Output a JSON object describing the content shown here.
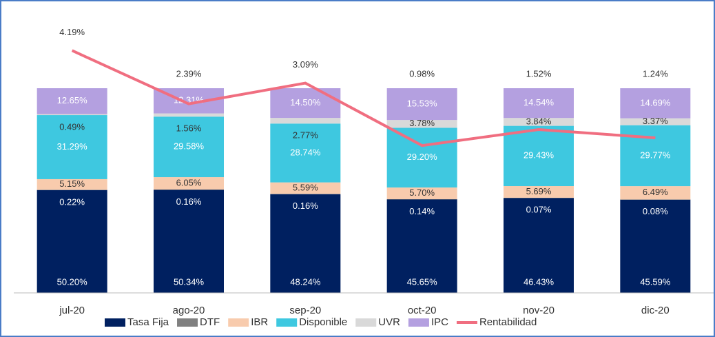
{
  "chart_data": {
    "type": "bar",
    "stacked": true,
    "categories": [
      "jul-20",
      "ago-20",
      "sep-20",
      "oct-20",
      "nov-20",
      "dic-20"
    ],
    "ylim": [
      0,
      133
    ],
    "y2lim": [
      -4,
      5.2
    ],
    "series": [
      {
        "name": "Tasa Fija",
        "color": "#002060",
        "values": [
          50.2,
          50.34,
          48.24,
          45.65,
          46.43,
          45.59
        ],
        "value_labels": [
          "50.20%",
          "50.34%",
          "48.24%",
          "45.65%",
          "46.43%",
          "45.59%"
        ]
      },
      {
        "name": "DTF",
        "color": "#808080",
        "values": [
          0.22,
          0.16,
          0.16,
          0.14,
          0.07,
          0.08
        ],
        "value_labels": [
          "0.22%",
          "0.16%",
          "0.16%",
          "0.14%",
          "0.07%",
          "0.08%"
        ]
      },
      {
        "name": "IBR",
        "color": "#f8cbad",
        "values": [
          5.15,
          6.05,
          5.59,
          5.7,
          5.69,
          6.49
        ],
        "value_labels": [
          "5.15%",
          "6.05%",
          "5.59%",
          "5.70%",
          "5.69%",
          "6.49%"
        ]
      },
      {
        "name": "Disponible",
        "color": "#3ec8e0",
        "values": [
          31.29,
          29.58,
          28.74,
          29.2,
          29.43,
          29.77
        ],
        "value_labels": [
          "31.29%",
          "29.58%",
          "28.74%",
          "29.20%",
          "29.43%",
          "29.77%"
        ]
      },
      {
        "name": "UVR",
        "color": "#d9d9d9",
        "values": [
          0.49,
          1.56,
          2.77,
          3.78,
          3.84,
          3.37
        ],
        "value_labels": [
          "0.49%",
          "1.56%",
          "2.77%",
          "3.78%",
          "3.84%",
          "3.37%"
        ]
      },
      {
        "name": "IPC",
        "color": "#b4a0e0",
        "values": [
          12.65,
          12.31,
          14.5,
          15.53,
          14.54,
          14.69
        ],
        "value_labels": [
          "12.65%",
          "12.31%",
          "14.50%",
          "15.53%",
          "14.54%",
          "14.69%"
        ]
      },
      {
        "name": "Rentabilidad",
        "type": "line",
        "axis": "y2",
        "color": "#f06e80",
        "values": [
          4.19,
          2.39,
          3.09,
          0.98,
          1.52,
          1.24
        ],
        "value_labels": [
          "4.19%",
          "2.39%",
          "3.09%",
          "0.98%",
          "1.52%",
          "1.24%"
        ]
      }
    ]
  }
}
